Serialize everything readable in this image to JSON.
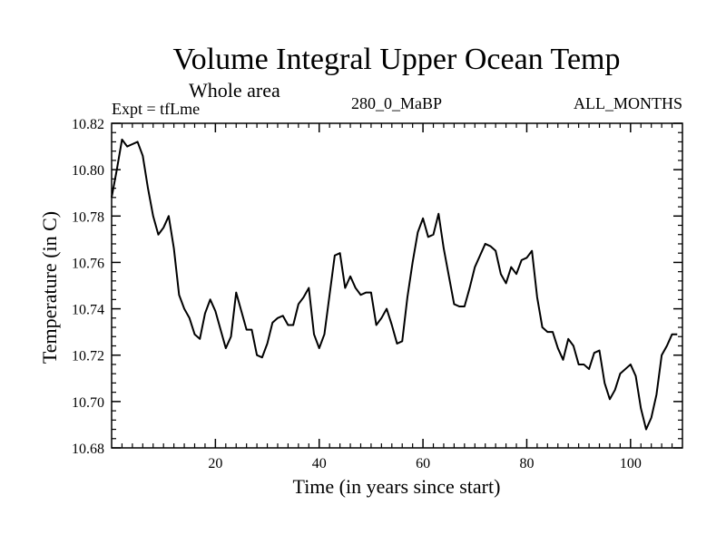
{
  "chart_data": {
    "type": "line",
    "title": "Volume Integral Upper Ocean Temp",
    "subtitle": "Whole area",
    "header_left": "Expt = tfLme",
    "header_center": "280_0_MaBP",
    "header_right": "ALL_MONTHS",
    "xlabel": "Time (in years since start)",
    "ylabel": "Temperature (in C)",
    "xlim": [
      0,
      110
    ],
    "ylim": [
      10.68,
      10.82
    ],
    "x_ticks": [
      20,
      40,
      60,
      80,
      100
    ],
    "y_ticks": [
      10.68,
      10.7,
      10.72,
      10.74,
      10.76,
      10.78,
      10.8,
      10.82
    ],
    "x_minor_step": 2,
    "y_minor_step": 0.004,
    "grid": false,
    "legend": "none",
    "series": [
      {
        "name": "Temperature",
        "color": "#000000",
        "values": [
          10.788,
          10.8,
          10.813,
          10.81,
          10.811,
          10.812,
          10.806,
          10.792,
          10.78,
          10.772,
          10.775,
          10.78,
          10.766,
          10.746,
          10.74,
          10.736,
          10.729,
          10.727,
          10.738,
          10.744,
          10.739,
          10.731,
          10.723,
          10.728,
          10.747,
          10.739,
          10.731,
          10.731,
          10.72,
          10.719,
          10.725,
          10.734,
          10.736,
          10.737,
          10.733,
          10.733,
          10.742,
          10.745,
          10.749,
          10.729,
          10.723,
          10.729,
          10.746,
          10.763,
          10.764,
          10.749,
          10.754,
          10.749,
          10.746,
          10.747,
          10.747,
          10.733,
          10.736,
          10.74,
          10.733,
          10.725,
          10.726,
          10.745,
          10.76,
          10.773,
          10.779,
          10.771,
          10.772,
          10.781,
          10.766,
          10.754,
          10.742,
          10.741,
          10.741,
          10.749,
          10.758,
          10.763,
          10.768,
          10.767,
          10.765,
          10.755,
          10.751,
          10.758,
          10.755,
          10.761,
          10.762,
          10.765,
          10.745,
          10.732,
          10.73,
          10.73,
          10.723,
          10.718,
          10.727,
          10.724,
          10.716,
          10.716,
          10.714,
          10.721,
          10.722,
          10.708,
          10.701,
          10.705,
          10.712,
          10.714,
          10.716,
          10.711,
          10.697,
          10.688,
          10.693,
          10.703,
          10.72,
          10.724,
          10.729,
          10.729
        ]
      }
    ]
  }
}
